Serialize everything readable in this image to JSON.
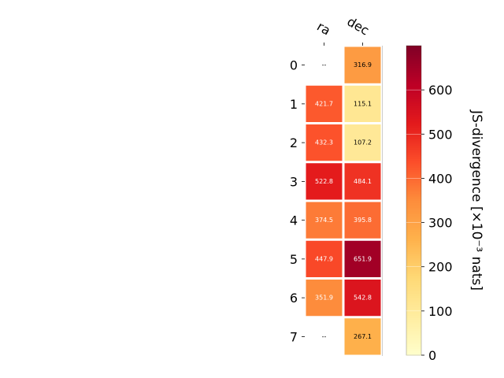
{
  "chart_data": {
    "type": "heatmap",
    "columns": [
      "ra",
      "dec"
    ],
    "rows": [
      "0",
      "1",
      "2",
      "3",
      "4",
      "5",
      "6",
      "7"
    ],
    "values": [
      [
        null,
        316.9
      ],
      [
        421.7,
        115.1
      ],
      [
        432.3,
        107.2
      ],
      [
        522.8,
        484.1
      ],
      [
        374.5,
        395.8
      ],
      [
        447.9,
        651.9
      ],
      [
        351.9,
        542.8
      ],
      [
        null,
        267.1
      ]
    ],
    "cell_labels": [
      [
        "--",
        "316.9"
      ],
      [
        "421.7",
        "115.1"
      ],
      [
        "432.3",
        "107.2"
      ],
      [
        "522.8",
        "484.1"
      ],
      [
        "374.5",
        "395.8"
      ],
      [
        "447.9",
        "651.9"
      ],
      [
        "351.9",
        "542.8"
      ],
      [
        "--",
        "267.1"
      ]
    ],
    "colorbar": {
      "label": "JS-divergence [×10⁻³ nats]",
      "range": [
        0,
        700
      ],
      "ticks": [
        0,
        100,
        200,
        300,
        400,
        500,
        600
      ],
      "colormap": "YlOrRd"
    },
    "grid": false
  }
}
